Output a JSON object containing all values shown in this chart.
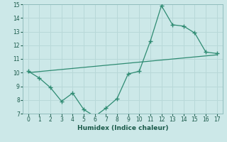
{
  "xlabel": "Humidex (Indice chaleur)",
  "x": [
    0,
    1,
    2,
    3,
    4,
    5,
    6,
    7,
    8,
    9,
    10,
    11,
    12,
    13,
    14,
    15,
    16,
    17
  ],
  "y_curve": [
    10.1,
    9.6,
    8.9,
    7.9,
    8.5,
    7.3,
    6.8,
    7.4,
    8.1,
    9.9,
    10.1,
    12.3,
    14.9,
    13.5,
    13.4,
    12.9,
    11.5,
    11.4
  ],
  "trend_x": [
    0,
    17
  ],
  "trend_y": [
    10.0,
    11.3
  ],
  "line_color": "#2e8b72",
  "bg_color": "#cce8e8",
  "grid_color": "#b8d8d8",
  "ylim": [
    7,
    15
  ],
  "xlim": [
    -0.5,
    17.5
  ],
  "yticks": [
    7,
    8,
    9,
    10,
    11,
    12,
    13,
    14,
    15
  ],
  "xticks": [
    0,
    1,
    2,
    3,
    4,
    5,
    6,
    7,
    8,
    9,
    10,
    11,
    12,
    13,
    14,
    15,
    16,
    17
  ],
  "tick_fontsize": 5.5,
  "xlabel_fontsize": 6.5
}
